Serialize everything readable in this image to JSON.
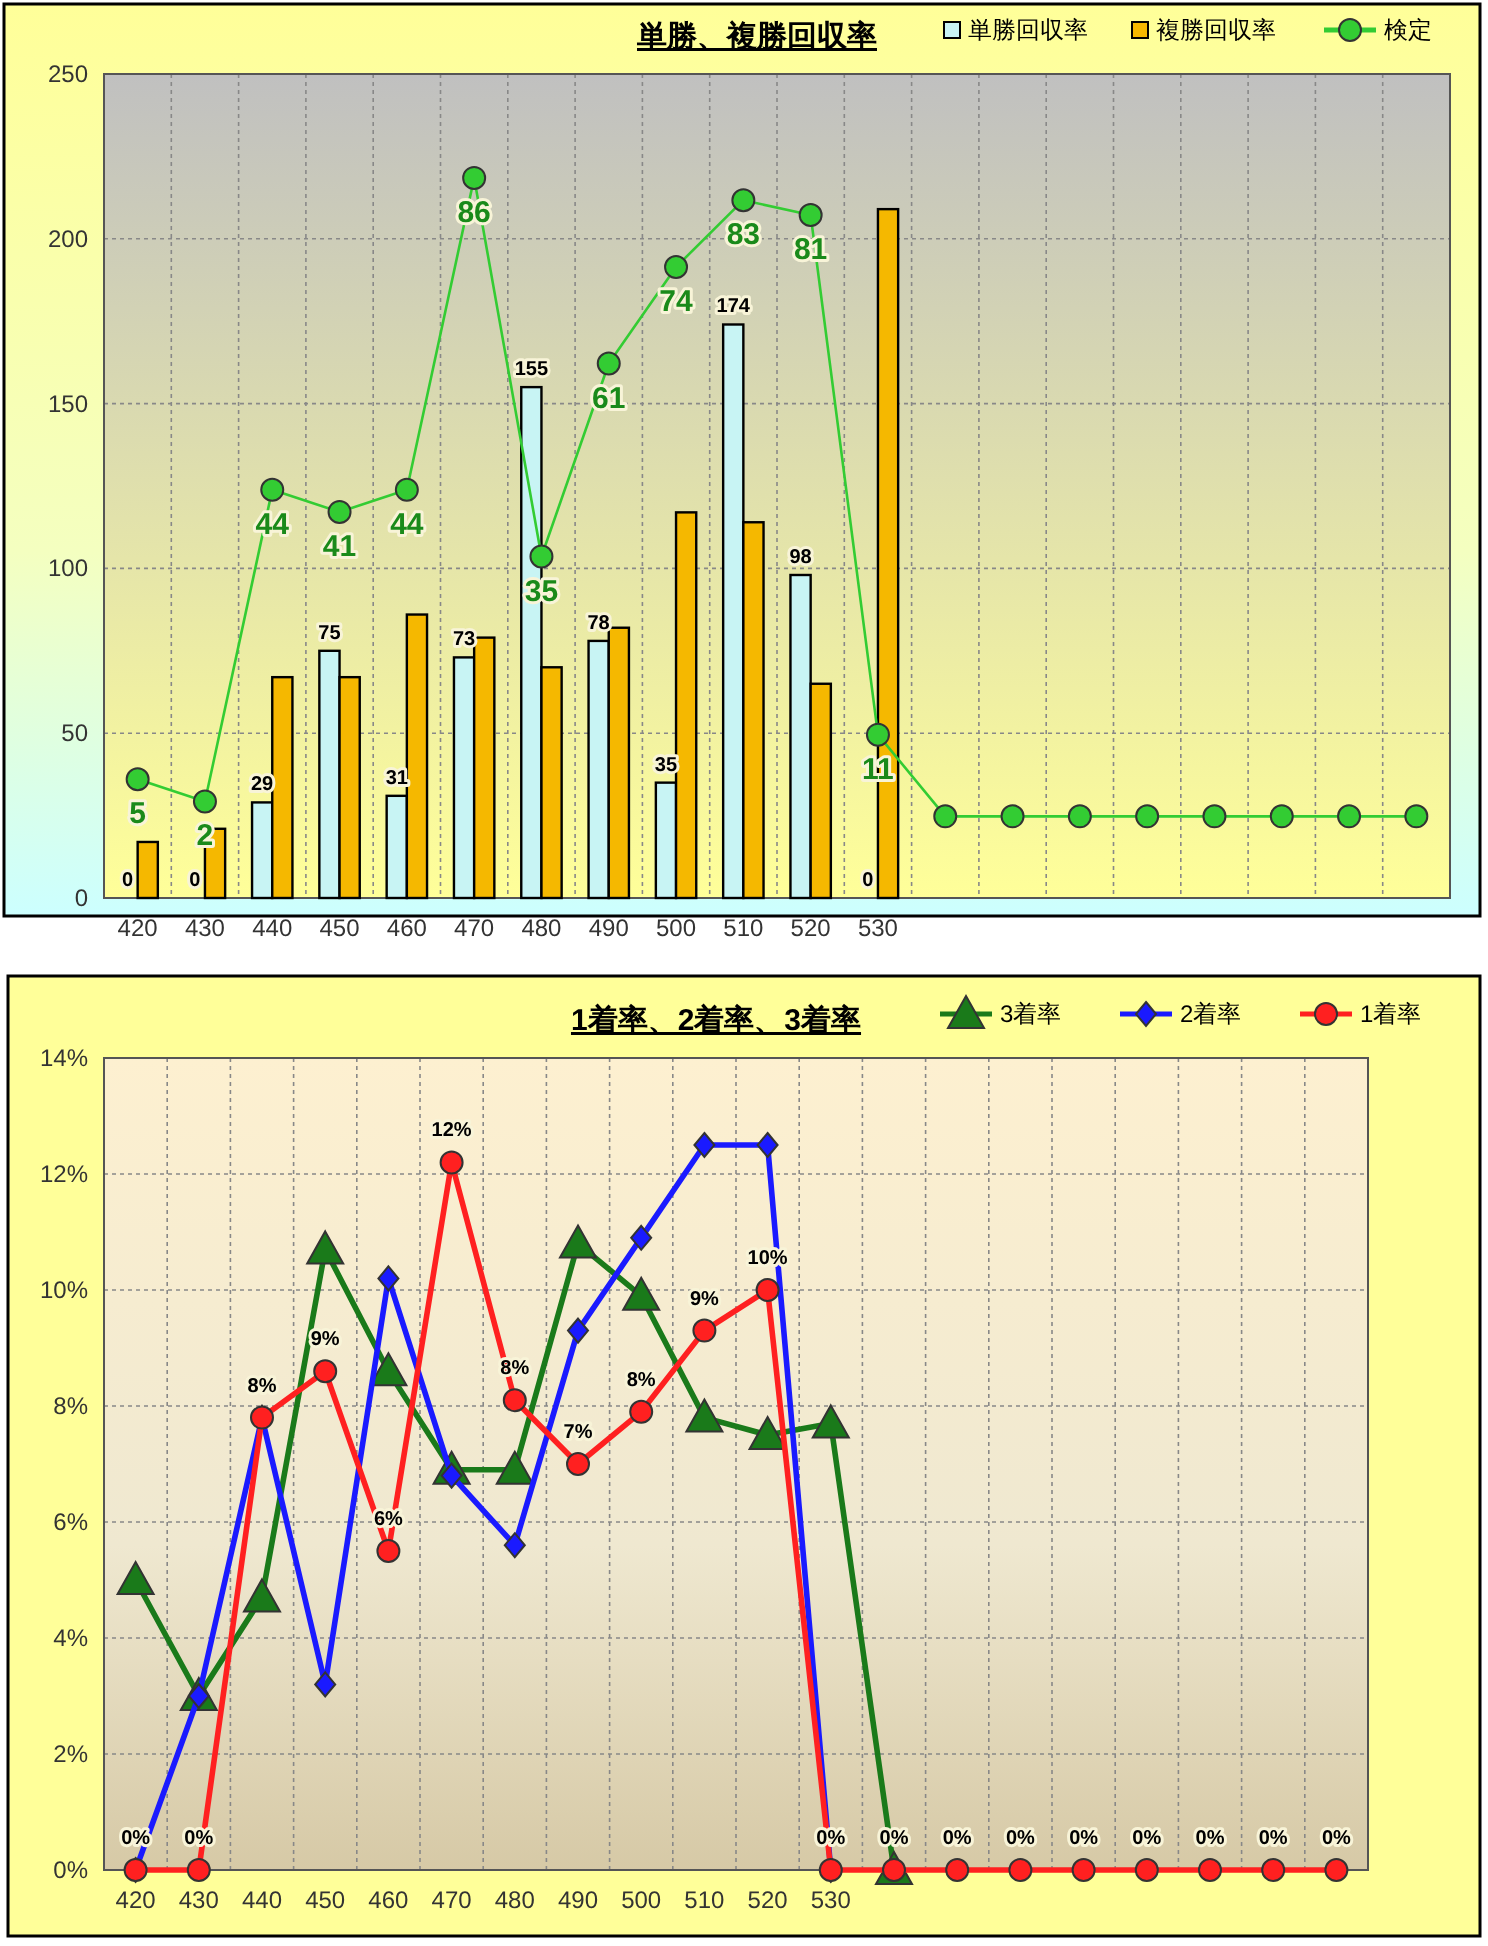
{
  "chart_data": [
    {
      "type": "bar",
      "title": "単勝、複勝回収率",
      "categories": [
        "420",
        "430",
        "440",
        "450",
        "460",
        "470",
        "480",
        "490",
        "500",
        "510",
        "520",
        "530",
        null,
        null,
        null,
        null,
        null,
        null,
        null,
        null
      ],
      "ylim": [
        0,
        250
      ],
      "yticks": [
        0,
        50,
        100,
        150,
        200,
        250
      ],
      "y2lim": [
        -11,
        100
      ],
      "grid": true,
      "legend": "top",
      "series": [
        {
          "name": "単勝回収率",
          "color": "#c8f4f4",
          "values": [
            0,
            0,
            29,
            75,
            31,
            73,
            155,
            78,
            35,
            174,
            98,
            0,
            null,
            null,
            null,
            null,
            null,
            null,
            null,
            null
          ],
          "value_labels": [
            "0",
            "0",
            "29",
            "75",
            "31",
            "73",
            "155",
            "78",
            "35",
            "174",
            "98",
            "0",
            null,
            null,
            null,
            null,
            null,
            null,
            null,
            null
          ]
        },
        {
          "name": "複勝回収率",
          "color": "#f5b800",
          "values": [
            17,
            21,
            67,
            67,
            86,
            79,
            70,
            82,
            117,
            114,
            65,
            209,
            null,
            null,
            null,
            null,
            null,
            null,
            null,
            null
          ]
        },
        {
          "name": "検定",
          "type": "line",
          "axis": "y2",
          "color": "#33cc33",
          "marker": "circle",
          "values": [
            5,
            2,
            44,
            41,
            44,
            86,
            35,
            61,
            74,
            83,
            81,
            11,
            0,
            0,
            0,
            0,
            0,
            0,
            0,
            0
          ],
          "value_labels": [
            "5",
            "2",
            "44",
            "41",
            "44",
            "86",
            "35",
            "61",
            "74",
            "83",
            "81",
            "11",
            null,
            null,
            null,
            null,
            null,
            null,
            null,
            null
          ]
        }
      ]
    },
    {
      "type": "line",
      "title": "1着率、2着率、3着率",
      "categories": [
        "420",
        "430",
        "440",
        "450",
        "460",
        "470",
        "480",
        "490",
        "500",
        "510",
        "520",
        "530",
        null,
        null,
        null,
        null,
        null,
        null,
        null,
        null
      ],
      "ylim": [
        0,
        14
      ],
      "yticks": [
        {
          "value": 0,
          "label": "0%"
        },
        {
          "value": 2,
          "label": "2%"
        },
        {
          "value": 4,
          "label": "4%"
        },
        {
          "value": 6,
          "label": "6%"
        },
        {
          "value": 8,
          "label": "8%"
        },
        {
          "value": 10,
          "label": "10%"
        },
        {
          "value": 12,
          "label": "12%"
        },
        {
          "value": 14,
          "label": "14%"
        }
      ],
      "grid": true,
      "legend": "top",
      "series": [
        {
          "name": "3着率",
          "color": "#1a7a1a",
          "marker": "triangle",
          "values": [
            5.0,
            3.0,
            4.7,
            10.7,
            8.6,
            6.9,
            6.9,
            10.8,
            9.9,
            7.8,
            7.5,
            7.7,
            0,
            null,
            null,
            null,
            null,
            null,
            null,
            null
          ]
        },
        {
          "name": "2着率",
          "color": "#1a1aff",
          "marker": "diamond",
          "values": [
            0,
            3.0,
            7.8,
            3.2,
            10.2,
            6.8,
            5.6,
            9.3,
            10.9,
            12.5,
            12.5,
            0,
            null,
            null,
            null,
            null,
            null,
            null,
            null,
            null
          ]
        },
        {
          "name": "1着率",
          "color": "#ff2020",
          "marker": "circle",
          "values": [
            0,
            0,
            7.8,
            8.6,
            5.5,
            12.2,
            8.1,
            7.0,
            7.9,
            9.3,
            10.0,
            0,
            0,
            0,
            0,
            0,
            0,
            0,
            0,
            0
          ],
          "value_labels": [
            "0%",
            "0%",
            "8%",
            "9%",
            "6%",
            "12%",
            "8%",
            "7%",
            "8%",
            "9%",
            "10%",
            "0%",
            "0%",
            "0%",
            "0%",
            "0%",
            "0%",
            "0%",
            "0%",
            "0%"
          ]
        }
      ]
    }
  ]
}
